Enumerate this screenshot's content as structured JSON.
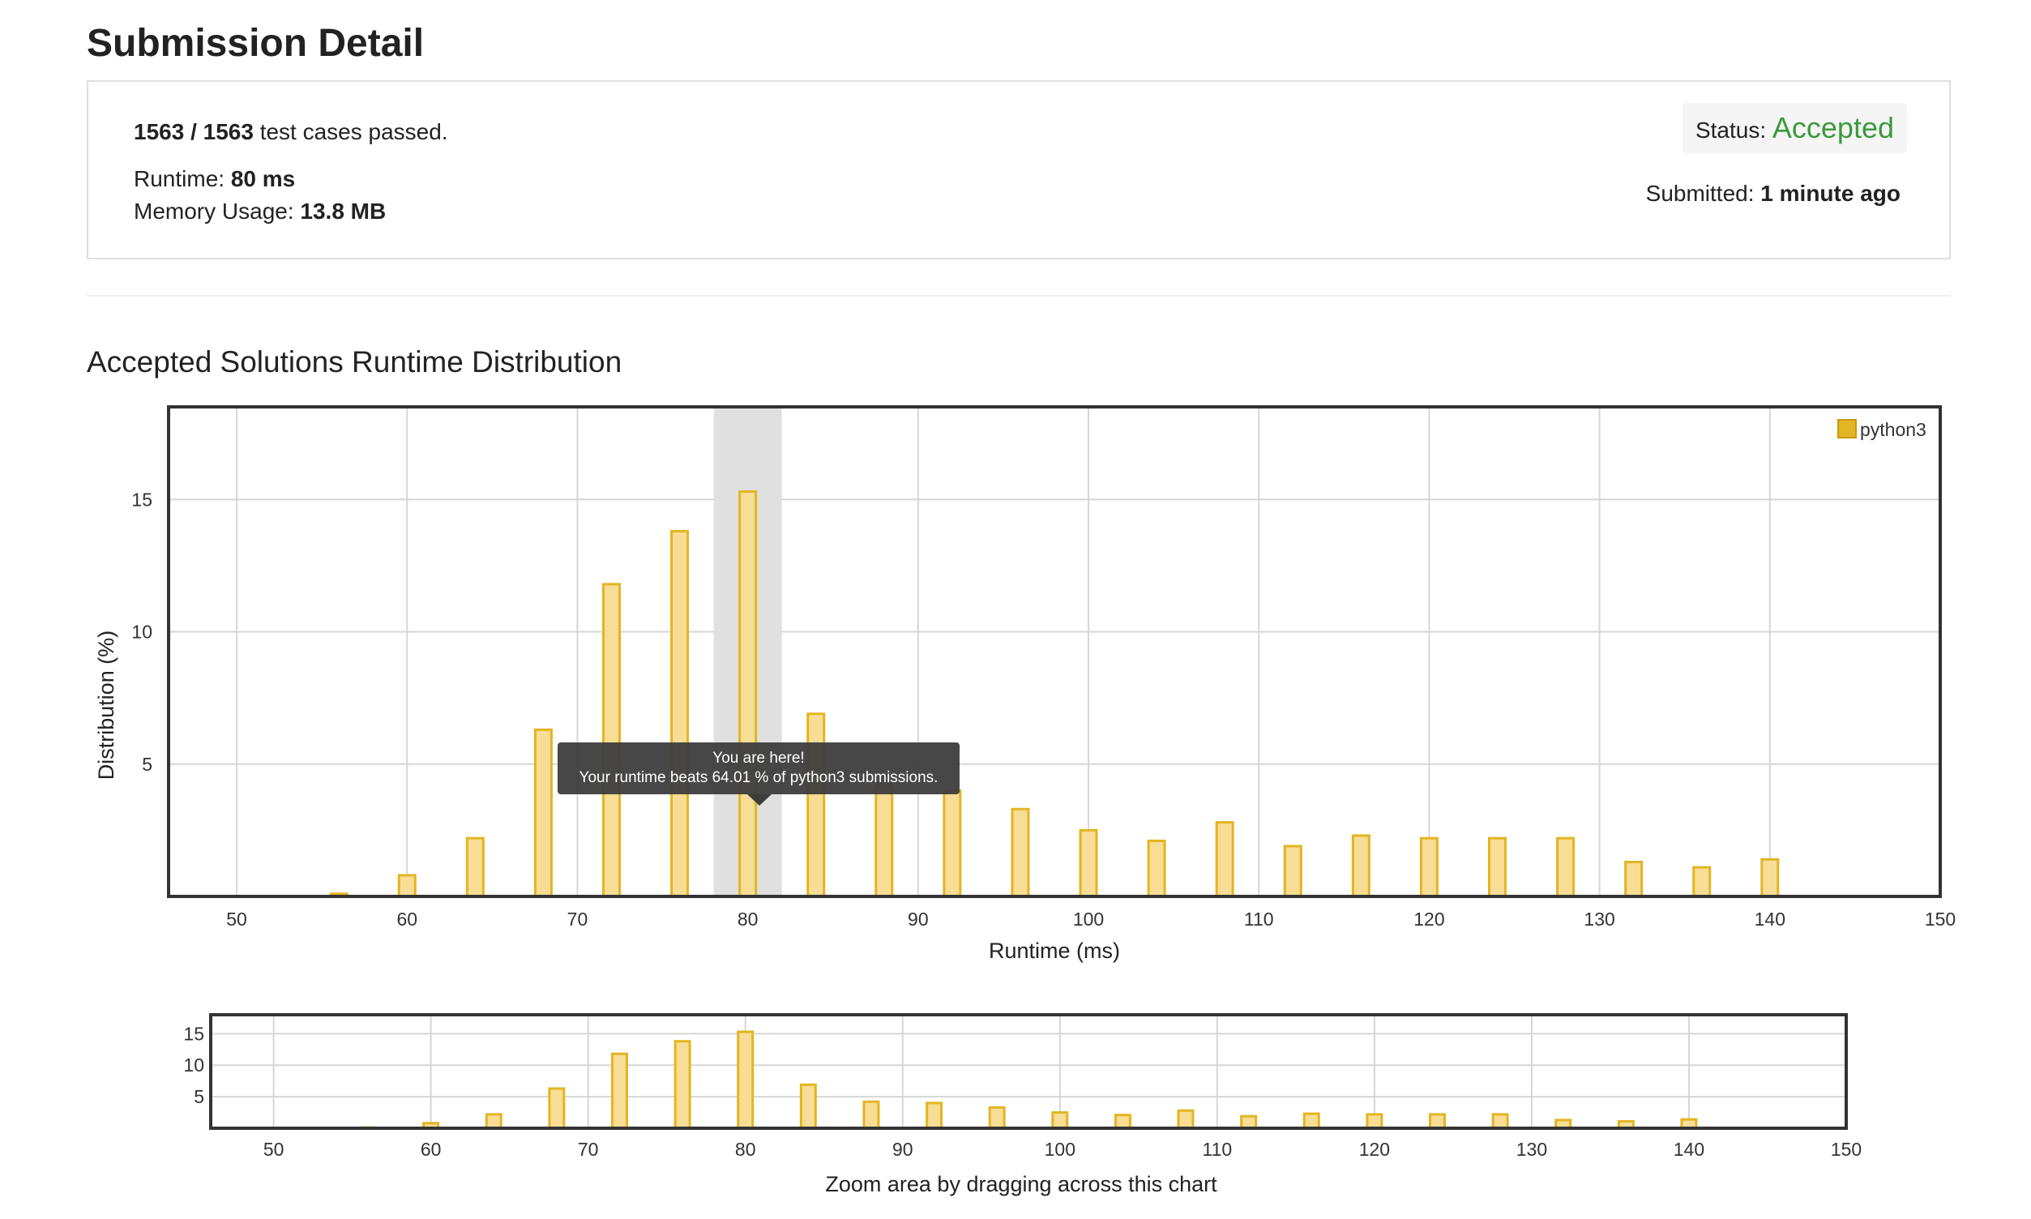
{
  "header": {
    "title": "Submission Detail"
  },
  "summary": {
    "tests_passed": "1563 / 1563",
    "tests_suffix": " test cases passed.",
    "runtime_label": "Runtime: ",
    "runtime_value": "80 ms",
    "memory_label": "Memory Usage: ",
    "memory_value": "13.8 MB",
    "status_label": "Status: ",
    "status_value": "Accepted",
    "submitted_label": "Submitted: ",
    "submitted_value": "1 minute ago"
  },
  "colors": {
    "accepted": "#3c9a3a",
    "bar_fill": "#f7dd95",
    "bar_stroke": "#e3b522",
    "highlight_band": "#e0e0e0"
  },
  "section": {
    "title": "Accepted Solutions Runtime Distribution"
  },
  "tooltip": {
    "line1": "You are here!",
    "line2": "Your runtime beats 64.01 % of python3 submissions."
  },
  "navigator": {
    "caption": "Zoom area by dragging across this chart"
  },
  "chart_data": [
    {
      "type": "bar",
      "xlabel": "Runtime (ms)",
      "ylabel": "Distribution (%)",
      "xlim": [
        46,
        150
      ],
      "ylim": [
        0,
        18.5
      ],
      "xticks": [
        50,
        60,
        70,
        80,
        90,
        100,
        110,
        120,
        130,
        140,
        150
      ],
      "yticks": [
        5,
        10,
        15
      ],
      "grid": true,
      "legend_position": "top-right",
      "highlight_range": [
        78,
        82
      ],
      "series": [
        {
          "name": "python3",
          "x": [
            56,
            60,
            64,
            68,
            72,
            76,
            80,
            84,
            88,
            92,
            96,
            100,
            104,
            108,
            112,
            116,
            120,
            124,
            128,
            132,
            136,
            140
          ],
          "values": [
            0.1,
            0.8,
            2.2,
            6.3,
            11.8,
            13.8,
            15.3,
            6.9,
            4.2,
            4.0,
            3.3,
            2.5,
            2.1,
            2.8,
            1.9,
            2.3,
            2.2,
            2.2,
            2.2,
            1.3,
            1.1,
            1.4
          ]
        }
      ]
    },
    {
      "type": "bar",
      "xlabel": "",
      "ylabel": "",
      "xlim": [
        46,
        150
      ],
      "ylim": [
        0,
        18
      ],
      "xticks": [
        50,
        60,
        70,
        80,
        90,
        100,
        110,
        120,
        130,
        140,
        150
      ],
      "yticks": [
        5,
        10,
        15
      ],
      "grid": true
    }
  ]
}
